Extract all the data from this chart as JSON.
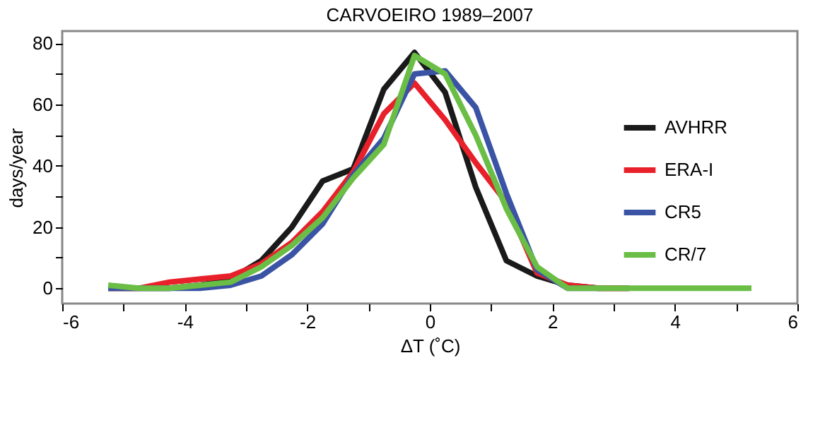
{
  "chart_data": {
    "type": "line",
    "title": "CARVOEIRO 1989–2007",
    "xlabel": "ΔT (˚C)",
    "ylabel": "days/year",
    "x": [
      -5.25,
      -4.75,
      -4.25,
      -3.75,
      -3.25,
      -2.75,
      -2.25,
      -1.75,
      -1.25,
      -0.75,
      -0.25,
      0.25,
      0.75,
      1.25,
      1.75,
      2.25,
      2.75,
      3.25,
      3.75,
      4.25,
      4.75,
      5.25
    ],
    "series": [
      {
        "name": "AVHRR",
        "color": "#1a1a1a",
        "values": [
          0,
          0,
          0,
          1,
          3,
          9,
          20,
          35,
          39,
          65,
          77,
          64,
          33,
          9,
          4,
          1,
          0,
          0,
          null,
          null,
          null,
          null
        ]
      },
      {
        "name": "ERA-I",
        "color": "#e8202a",
        "values": [
          0,
          0,
          2,
          3,
          4,
          8,
          15,
          25,
          38,
          57,
          67,
          55,
          41,
          28,
          5,
          1,
          0,
          0,
          null,
          null,
          null,
          null
        ]
      },
      {
        "name": "CR5",
        "color": "#3a53a4",
        "values": [
          0,
          0,
          0,
          0,
          1,
          4,
          11,
          21,
          37,
          49,
          70,
          71,
          59,
          31,
          6,
          0,
          0,
          null,
          null,
          null,
          null,
          null
        ]
      },
      {
        "name": "CR/7",
        "color": "#6abd45",
        "values": [
          1,
          0,
          0,
          1,
          2,
          7,
          14,
          23,
          36,
          47,
          76,
          70,
          50,
          26,
          7,
          0,
          0,
          0,
          0,
          0,
          0,
          0
        ]
      }
    ],
    "xlim": [
      -6,
      6
    ],
    "ylim": [
      -5,
      84
    ],
    "xticks": [
      -6,
      {
        "value": -5,
        "label": null
      },
      -4,
      {
        "value": -3,
        "label": null
      },
      -2,
      {
        "value": -1,
        "label": null
      },
      0,
      {
        "value": 1,
        "label": null
      },
      2,
      {
        "value": 3,
        "label": null
      },
      4,
      {
        "value": 5,
        "label": null
      },
      6
    ],
    "yticks": [
      0,
      {
        "value": 10,
        "label": null
      },
      20,
      {
        "value": 30,
        "label": null
      },
      40,
      {
        "value": 50,
        "label": null
      },
      60,
      {
        "value": 70,
        "label": null
      },
      80
    ],
    "grid": false,
    "legend": "right",
    "marker": "none",
    "line_style": "solid"
  }
}
